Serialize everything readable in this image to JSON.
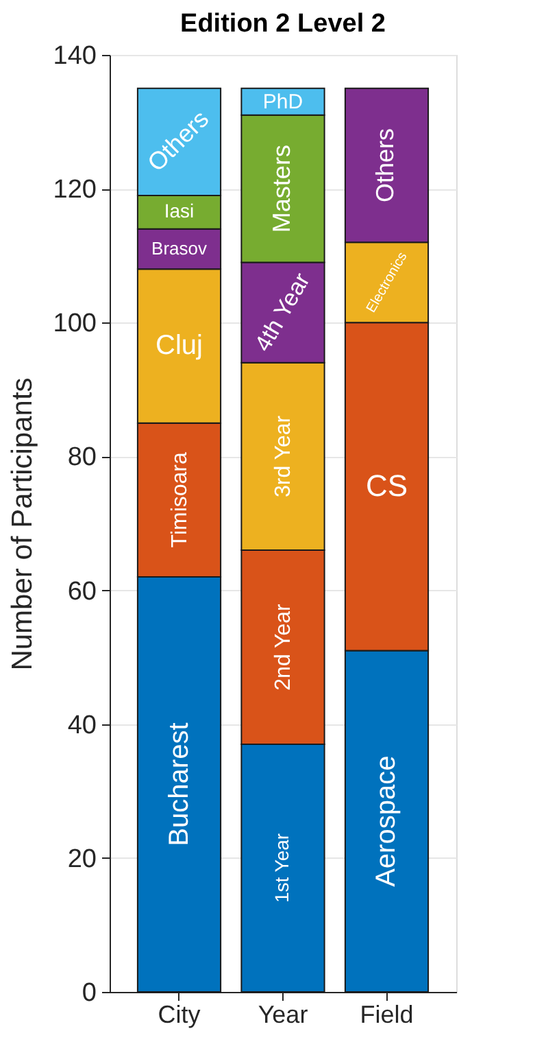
{
  "chart_data": {
    "type": "bar",
    "title": "Edition 2 Level 2",
    "ylabel": "Number of Participants",
    "categories": [
      "City",
      "Year",
      "Field"
    ],
    "stacked": true,
    "ylim": [
      0,
      140
    ],
    "yticks": [
      0,
      20,
      40,
      60,
      80,
      100,
      120,
      140
    ],
    "grid": "y",
    "series": [
      {
        "name": "Bucharest",
        "color": "#0072bd",
        "values": [
          62,
          null,
          null
        ]
      },
      {
        "name": "Timisoara",
        "color": "#d95319",
        "values": [
          23,
          null,
          null
        ]
      },
      {
        "name": "Cluj",
        "color": "#edb120",
        "values": [
          23,
          null,
          null
        ]
      },
      {
        "name": "Brasov",
        "color": "#7e2f8e",
        "values": [
          6,
          null,
          null
        ]
      },
      {
        "name": "Iasi",
        "color": "#77ac30",
        "values": [
          5,
          null,
          null
        ]
      },
      {
        "name": "Others",
        "color": "#4dbeee",
        "values": [
          16,
          null,
          null
        ]
      },
      {
        "name": "1st Year",
        "color": "#0072bd",
        "values": [
          null,
          37,
          null
        ]
      },
      {
        "name": "2nd Year",
        "color": "#d95319",
        "values": [
          null,
          29,
          null
        ]
      },
      {
        "name": "3rd Year",
        "color": "#edb120",
        "values": [
          null,
          28,
          null
        ]
      },
      {
        "name": "4th Year",
        "color": "#7e2f8e",
        "values": [
          null,
          15,
          null
        ]
      },
      {
        "name": "Masters",
        "color": "#77ac30",
        "values": [
          null,
          22,
          null
        ]
      },
      {
        "name": "PhD",
        "color": "#4dbeee",
        "values": [
          null,
          4,
          null
        ]
      },
      {
        "name": "Aerospace",
        "color": "#0072bd",
        "values": [
          null,
          null,
          51
        ]
      },
      {
        "name": "CS",
        "color": "#d95319",
        "values": [
          null,
          null,
          49
        ]
      },
      {
        "name": "Electronics",
        "color": "#edb120",
        "values": [
          null,
          null,
          12
        ]
      },
      {
        "name": "Others",
        "color": "#7e2f8e",
        "values": [
          null,
          null,
          23
        ]
      }
    ]
  }
}
